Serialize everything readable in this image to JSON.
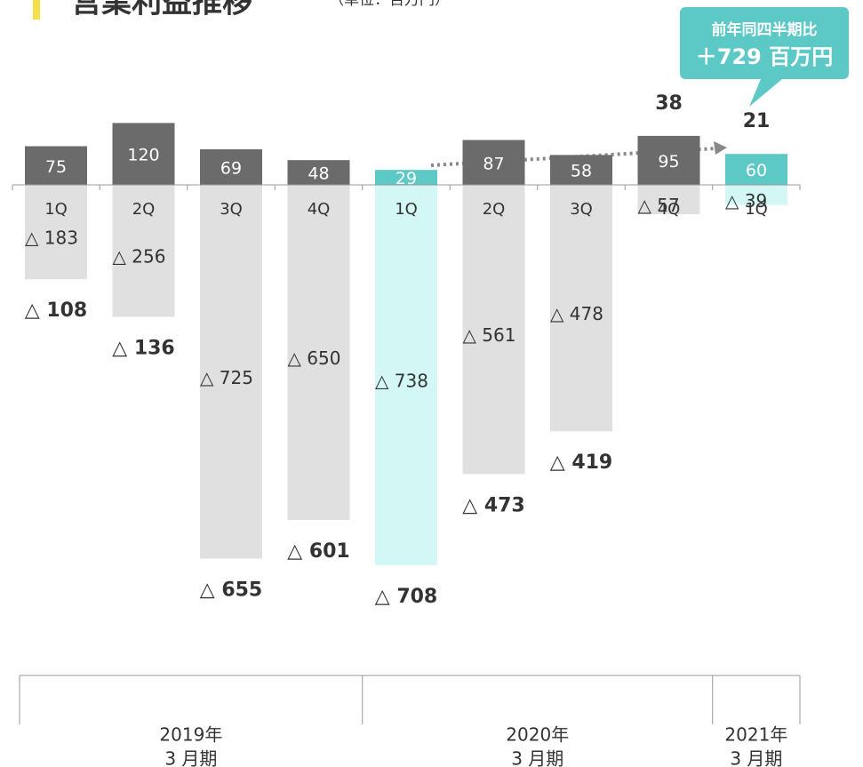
{
  "chart_data": {
    "type": "bar",
    "title": "営業利益推移",
    "subtitle": "（単位：百万円）",
    "callout": {
      "line1": "前年同四半期比",
      "line2": "＋729 百万円"
    },
    "categories": [
      "1Q",
      "2Q",
      "3Q",
      "4Q",
      "1Q",
      "2Q",
      "3Q",
      "4Q",
      "1Q"
    ],
    "groups": [
      {
        "year": "2019年",
        "period": "3 月期",
        "span": 4
      },
      {
        "year": "2020年",
        "period": "3 月期",
        "span": 4
      },
      {
        "year": "2021年",
        "period": "3 月期",
        "span": 1
      }
    ],
    "series": [
      {
        "colors": [
          "#6b6b6b",
          "#6b6b6b",
          "#6b6b6b",
          "#6b6b6b",
          "#5cc9c6",
          "#6b6b6b",
          "#6b6b6b",
          "#6b6b6b",
          "#5cc9c6"
        ],
        "values": [
          75,
          120,
          69,
          48,
          29,
          87,
          58,
          95,
          60
        ]
      },
      {
        "colors": [
          "#e0e0e0",
          "#e0e0e0",
          "#e0e0e0",
          "#e0e0e0",
          "#d3f7f4",
          "#e0e0e0",
          "#e0e0e0",
          "#e0e0e0",
          "#d3f7f4"
        ],
        "values": [
          -183,
          -256,
          -725,
          -650,
          -738,
          -561,
          -478,
          -57,
          -39
        ],
        "value_labels": [
          "△ 183",
          "△ 256",
          "△ 725",
          "△ 650",
          "△ 738",
          "△ 561",
          "△ 478",
          "△ 57",
          "△ 39"
        ]
      },
      {
        "values": [
          -108,
          -136,
          -655,
          -601,
          -708,
          -473,
          -419,
          38,
          21
        ],
        "value_labels": [
          "△ 108",
          "△ 136",
          "△ 655",
          "△ 601",
          "△ 708",
          "△ 473",
          "△ 419",
          "38",
          "21"
        ]
      }
    ],
    "ylim": [
      -800,
      200
    ]
  }
}
